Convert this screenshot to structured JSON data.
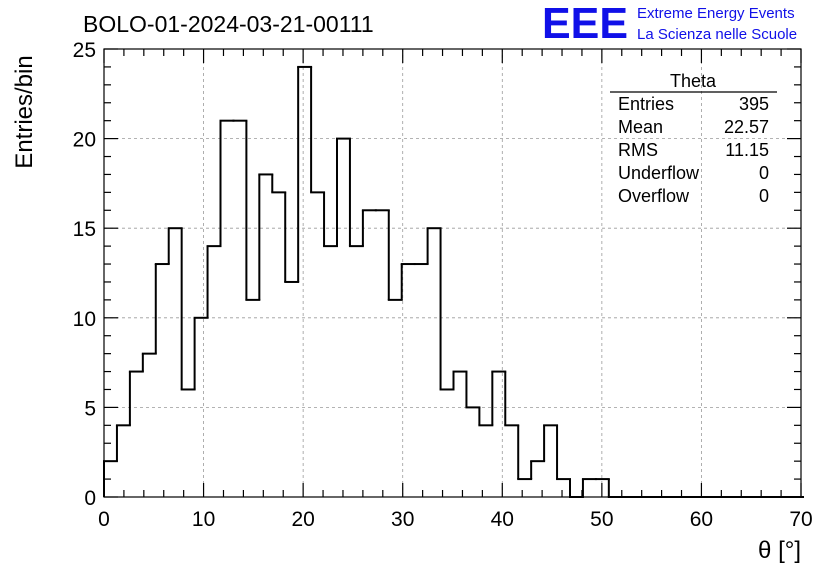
{
  "title": "BOLO-01-2024-03-21-00111",
  "logo": {
    "mark": "EEE",
    "line1": "Extreme Energy Events",
    "line2": "La Scienza nelle Scuole",
    "color": "#1010e8"
  },
  "stats": {
    "name": "Theta",
    "rows": [
      {
        "label": "Entries",
        "value": "395"
      },
      {
        "label": "Mean",
        "value": "22.57"
      },
      {
        "label": "RMS",
        "value": "11.15"
      },
      {
        "label": "Underflow",
        "value": "0"
      },
      {
        "label": "Overflow",
        "value": "0"
      }
    ]
  },
  "chart_data": {
    "type": "histogram",
    "xlabel": "θ [°]",
    "ylabel": "Entries/bin",
    "xlim": [
      0,
      70
    ],
    "ylim": [
      0,
      25
    ],
    "bin_width": 1.3,
    "x_start": 0,
    "counts": [
      2,
      4,
      7,
      8,
      13,
      15,
      6,
      10,
      14,
      21,
      21,
      11,
      18,
      17,
      12,
      24,
      17,
      14,
      20,
      14,
      16,
      16,
      11,
      13,
      13,
      15,
      6,
      7,
      5,
      4,
      7,
      4,
      1,
      2,
      4,
      1,
      0,
      1,
      1,
      0,
      0,
      0,
      0,
      0,
      0,
      0,
      0,
      0,
      0,
      0,
      0,
      0,
      0,
      0
    ],
    "x_ticks": [
      0,
      10,
      20,
      30,
      40,
      50,
      60,
      70
    ],
    "y_ticks": [
      0,
      5,
      10,
      15,
      20,
      25
    ],
    "grid": true,
    "line_color": "#000000",
    "grid_color": "#9a9a9a"
  }
}
